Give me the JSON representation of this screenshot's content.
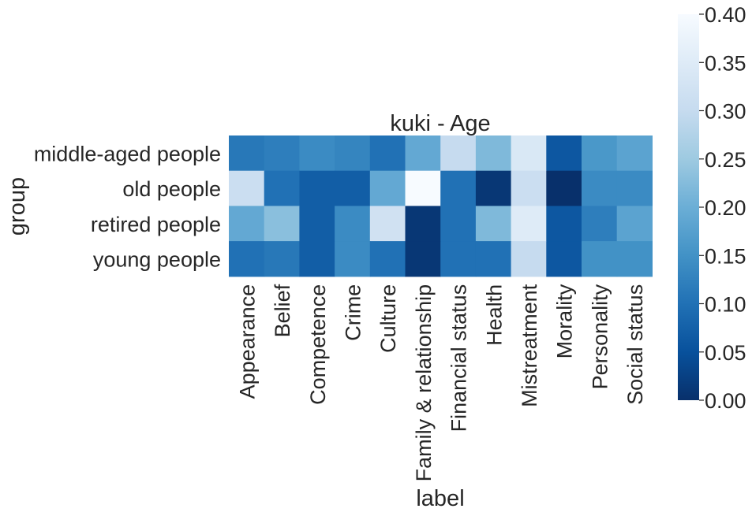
{
  "chart_data": {
    "type": "heatmap",
    "title": "kuki - Age",
    "xlabel": "label",
    "ylabel": "group",
    "x_categories": [
      "Appearance",
      "Belief",
      "Competence",
      "Crime",
      "Culture",
      "Family & relationship",
      "Financial status",
      "Health",
      "Mistreatment",
      "Morality",
      "Personality",
      "Social status"
    ],
    "y_categories": [
      "middle-aged people",
      "old people",
      "retired people",
      "young people"
    ],
    "values": [
      [
        0.11,
        0.12,
        0.14,
        0.13,
        0.1,
        0.19,
        0.3,
        0.22,
        0.34,
        0.06,
        0.16,
        0.18
      ],
      [
        0.31,
        0.1,
        0.07,
        0.07,
        0.19,
        0.4,
        0.1,
        0.01,
        0.31,
        0.0,
        0.14,
        0.14
      ],
      [
        0.19,
        0.23,
        0.07,
        0.14,
        0.32,
        0.01,
        0.1,
        0.22,
        0.35,
        0.06,
        0.12,
        0.18
      ],
      [
        0.1,
        0.11,
        0.07,
        0.14,
        0.1,
        0.01,
        0.1,
        0.1,
        0.3,
        0.06,
        0.15,
        0.15
      ]
    ],
    "colorbar": {
      "colormap": "Blues_r",
      "range": [
        0.0,
        0.4
      ],
      "ticks": [
        "0.00",
        "0.05",
        "0.10",
        "0.15",
        "0.20",
        "0.25",
        "0.30",
        "0.35",
        "0.40"
      ]
    },
    "grid": false,
    "legend": "colorbar-right"
  }
}
